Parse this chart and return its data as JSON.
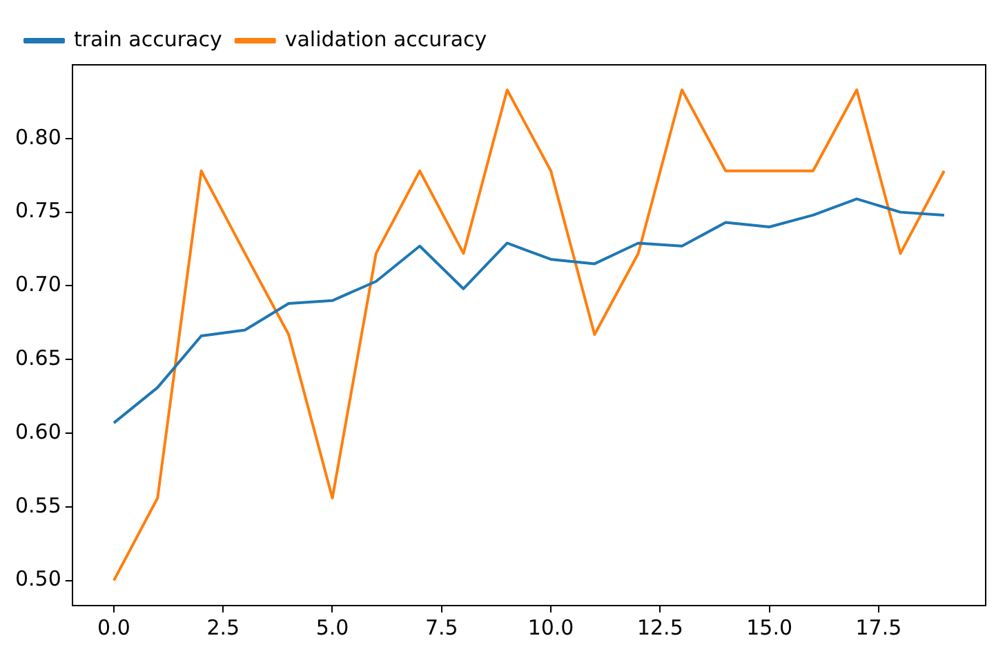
{
  "chart_data": {
    "type": "line",
    "x": [
      0,
      1,
      2,
      3,
      4,
      5,
      6,
      7,
      8,
      9,
      10,
      11,
      12,
      13,
      14,
      15,
      16,
      17,
      18,
      19
    ],
    "series": [
      {
        "name": "train accuracy",
        "color": "#1f77b4",
        "values": [
          0.607,
          0.631,
          0.666,
          0.67,
          0.688,
          0.69,
          0.703,
          0.727,
          0.698,
          0.729,
          0.718,
          0.715,
          0.729,
          0.727,
          0.743,
          0.74,
          0.748,
          0.759,
          0.75,
          0.748
        ]
      },
      {
        "name": "validation accuracy",
        "color": "#ff7f0e",
        "values": [
          0.5,
          0.556,
          0.778,
          0.722,
          0.667,
          0.556,
          0.722,
          0.778,
          0.722,
          0.833,
          0.778,
          0.667,
          0.722,
          0.833,
          0.778,
          0.778,
          0.778,
          0.833,
          0.722,
          0.778
        ]
      }
    ],
    "xlim": [
      -0.95,
      19.95
    ],
    "ylim": [
      0.483,
      0.85
    ],
    "xticks": [
      {
        "value": 0,
        "label": "0.0"
      },
      {
        "value": 2.5,
        "label": "2.5"
      },
      {
        "value": 5,
        "label": "5.0"
      },
      {
        "value": 7.5,
        "label": "7.5"
      },
      {
        "value": 10,
        "label": "10.0"
      },
      {
        "value": 12.5,
        "label": "12.5"
      },
      {
        "value": 15,
        "label": "15.0"
      },
      {
        "value": 17.5,
        "label": "17.5"
      }
    ],
    "yticks": [
      {
        "value": 0.5,
        "label": "0.50"
      },
      {
        "value": 0.55,
        "label": "0.55"
      },
      {
        "value": 0.6,
        "label": "0.60"
      },
      {
        "value": 0.65,
        "label": "0.65"
      },
      {
        "value": 0.7,
        "label": "0.70"
      },
      {
        "value": 0.75,
        "label": "0.75"
      },
      {
        "value": 0.8,
        "label": "0.80"
      }
    ],
    "grid": false,
    "legend": "top left",
    "marker": "none",
    "line_style": "solid"
  }
}
